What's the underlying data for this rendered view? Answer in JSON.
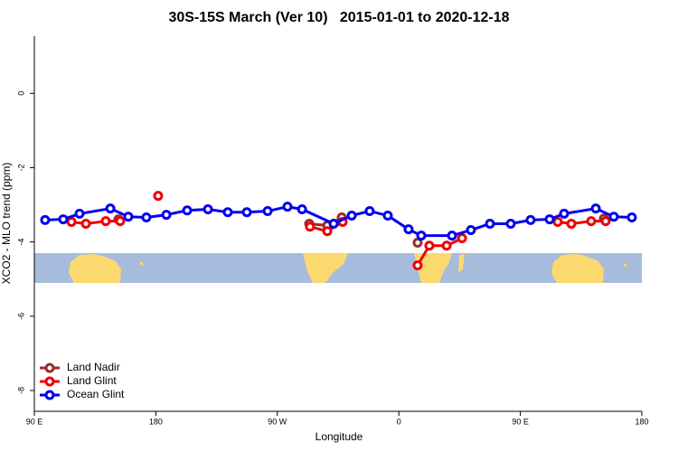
{
  "chart_data": {
    "type": "line",
    "title": "30S-15S March (Ver 10)   2015-01-01 to 2020-12-18",
    "x_label": "Longitude",
    "y_label": "XCO2 - MLO trend (ppm)",
    "xlim": [
      90,
      540
    ],
    "ylim": [
      -8.56,
      1.54
    ],
    "xticks": [
      {
        "value": 90,
        "label": "90 E"
      },
      {
        "value": 180,
        "label": "180"
      },
      {
        "value": 270,
        "label": "90 W"
      },
      {
        "value": 360,
        "label": "0"
      },
      {
        "value": 450,
        "label": "90 E"
      },
      {
        "value": 540,
        "label": "180"
      }
    ],
    "yticks": [
      0,
      -2,
      -4,
      -6,
      -8
    ],
    "legend": "bottom-left",
    "series": [
      {
        "name": "Land Nadir",
        "color": "#9b2c2c",
        "x": [
          152.3,
          null,
          293.6,
          307,
          317.7,
          null,
          373.9,
          null,
          511.9
        ],
        "values": [
          -3.39,
          null,
          -3.51,
          -3.56,
          -3.34,
          null,
          -4.02,
          null,
          -3.37
        ]
      },
      {
        "name": "Land Glint",
        "color": "#ee0000",
        "x": [
          117.5,
          128.2,
          142.9,
          153.6,
          null,
          181.7,
          null,
          294.2,
          307,
          318.4,
          null,
          373.9,
          382.6,
          395.4,
          406.8,
          null,
          477.7,
          487.8,
          502.5,
          513.2
        ],
        "values": [
          -3.46,
          -3.51,
          -3.44,
          -3.44,
          null,
          -2.76,
          null,
          -3.59,
          -3.71,
          -3.46,
          null,
          -4.63,
          -4.1,
          -4.1,
          -3.9,
          null,
          -3.46,
          -3.51,
          -3.44,
          -3.44
        ]
      },
      {
        "name": "Ocean Glint",
        "color": "#0000ee",
        "x": [
          98,
          111.4,
          123.5,
          146.3,
          159.6,
          173,
          187.8,
          203.2,
          218.6,
          233.3,
          247.4,
          262.8,
          277.5,
          288.3,
          311.7,
          325.1,
          338.4,
          351.8,
          367.2,
          376.6,
          399.4,
          413.4,
          427.5,
          442.9,
          457.6,
          471.7,
          482.4,
          505.9,
          519.2,
          532.6
        ],
        "values": [
          -3.41,
          -3.39,
          -3.24,
          -3.1,
          -3.32,
          -3.34,
          -3.27,
          -3.15,
          -3.12,
          -3.2,
          -3.2,
          -3.17,
          -3.05,
          -3.12,
          -3.51,
          -3.29,
          -3.17,
          -3.29,
          -3.66,
          -3.83,
          -3.83,
          -3.68,
          -3.51,
          -3.51,
          -3.41,
          -3.39,
          -3.24,
          -3.1,
          -3.32,
          -3.34
        ]
      }
    ]
  }
}
